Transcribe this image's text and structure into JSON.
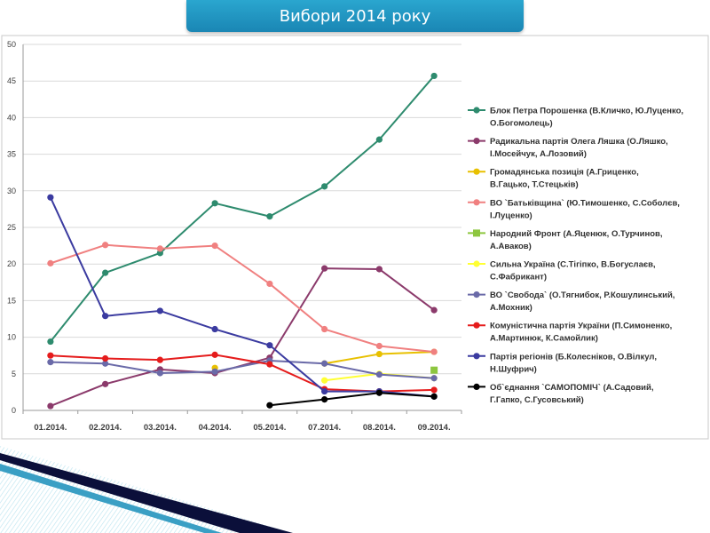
{
  "slide": {
    "title": "Вибори 2014 року"
  },
  "chart_data": {
    "type": "line",
    "title": "",
    "xlabel": "",
    "ylabel": "",
    "categories": [
      "01.2014.",
      "02.2014.",
      "03.2014.",
      "04.2014.",
      "05.2014.",
      "07.2014.",
      "08.2014.",
      "09.2014."
    ],
    "ylim": [
      0,
      50
    ],
    "yticks": [
      0,
      5,
      10,
      15,
      20,
      25,
      30,
      35,
      40,
      45,
      50
    ],
    "grid": "horizontal",
    "legend_position": "right",
    "series": [
      {
        "name": "Блок Петра Порошенка (В.Кличко, Ю.Луценко, О.Богомолець)",
        "color": "#2e8b6e",
        "marker": "circle",
        "values": [
          9.4,
          18.8,
          21.5,
          28.3,
          26.5,
          30.6,
          37.0,
          45.7
        ]
      },
      {
        "name": "Радикальна партія Олега Ляшка (О.Ляшко, І.Мосейчук, А.Лозовий)",
        "color": "#8b3a6b",
        "marker": "circle",
        "values": [
          0.6,
          3.6,
          5.6,
          5.1,
          7.2,
          19.4,
          19.3,
          13.7
        ]
      },
      {
        "name": "Громадянська позиція (А.Гриценко, В.Гацько, Т.Стецьків)",
        "color": "#e8c000",
        "marker": "circle",
        "values": [
          null,
          null,
          null,
          5.8,
          null,
          6.4,
          7.7,
          8.0
        ]
      },
      {
        "name": "ВО `Батьківщина` (Ю.Тимошенко, С.Соболєв, І.Луценко)",
        "color": "#f08080",
        "marker": "circle",
        "values": [
          20.1,
          22.6,
          22.1,
          22.5,
          17.3,
          11.1,
          8.8,
          8.0
        ]
      },
      {
        "name": "Народний Фронт (А.Яценюк, О.Турчинов, А.Аваков)",
        "color": "#8dc63f",
        "marker": "square",
        "values": [
          null,
          null,
          null,
          null,
          null,
          null,
          null,
          5.5
        ]
      },
      {
        "name": "Сильна Україна (С.Тігіпко, В.Богуслаєв, С.Фабрикант)",
        "color": "#ffff33",
        "marker": "circle",
        "values": [
          null,
          null,
          null,
          null,
          null,
          4.1,
          5.0,
          4.4
        ]
      },
      {
        "name": "ВО `Свобода` (О.Тягнибок, Р.Кошулинський, А.Мохник)",
        "color": "#6a6aa8",
        "marker": "circle",
        "values": [
          6.6,
          6.4,
          5.1,
          5.3,
          6.8,
          6.4,
          4.9,
          4.4
        ]
      },
      {
        "name": "Комуністична партія України (П.Симоненко, А.Мартинюк, К.Самойлик)",
        "color": "#e51c1c",
        "marker": "circle",
        "values": [
          7.5,
          7.1,
          6.9,
          7.6,
          6.3,
          2.9,
          2.6,
          2.8
        ]
      },
      {
        "name": "Партія регіонів (Б.Колесніков, О.Вілкул, Н.Шуфрич)",
        "color": "#3b3ba0",
        "marker": "circle",
        "values": [
          29.1,
          12.9,
          13.6,
          11.1,
          8.9,
          2.6,
          2.6,
          1.9
        ]
      },
      {
        "name": "Об`єднання `САМОПОМІЧ` (А.Садовий, Г.Гапко, С.Гусовський)",
        "color": "#000000",
        "marker": "circle",
        "values": [
          null,
          null,
          null,
          null,
          0.7,
          1.5,
          2.4,
          1.9
        ]
      }
    ]
  }
}
